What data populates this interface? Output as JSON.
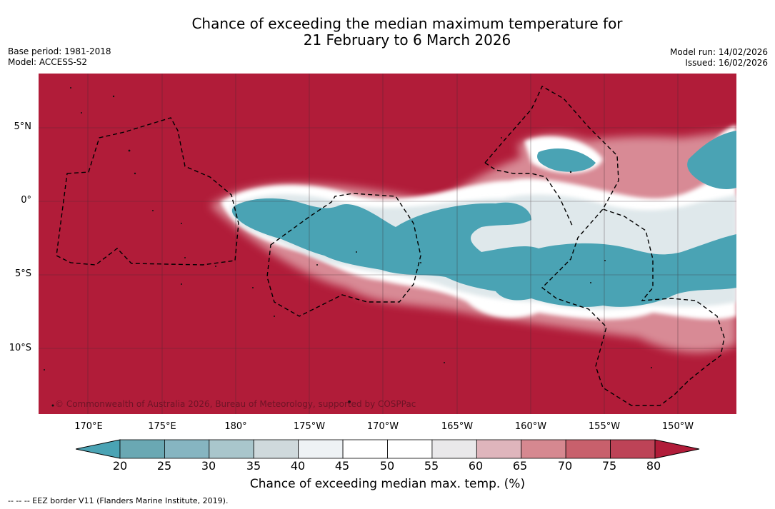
{
  "title": {
    "line1": "Chance of exceeding the median maximum temperature for",
    "line2": "21 February to 6 March 2026"
  },
  "meta_left": {
    "base_period": "Base period: 1981-2018",
    "model": "Model: ACCESS-S2"
  },
  "meta_right": {
    "model_run": "Model run: 14/02/2026",
    "issued": "Issued: 16/02/2026"
  },
  "map": {
    "lat_labels": [
      "5°N",
      "0°",
      "5°S",
      "10°S"
    ],
    "lon_labels": [
      "170°E",
      "175°E",
      "180°",
      "175°W",
      "170°W",
      "165°W",
      "160°W",
      "155°W",
      "150°W"
    ],
    "copyright": "© Commonwealth of Australia 2026, Bureau of Meteorology, supported by COSPPac",
    "colors": {
      "above_median": "#b11c39",
      "below_median": "#4aa3b4",
      "neutral": "#ffffff",
      "eez_border": "#000000"
    }
  },
  "colorbar": {
    "ticks": [
      "20",
      "25",
      "30",
      "35",
      "40",
      "45",
      "50",
      "55",
      "60",
      "65",
      "70",
      "75",
      "80"
    ],
    "colors": [
      "#6aa8b3",
      "#86b5c1",
      "#a9c6cc",
      "#cfd9dc",
      "#eef2f5",
      "#ffffff",
      "#ffffff",
      "#e9e8ea",
      "#dfb5bc",
      "#d68890",
      "#c8606c",
      "#bd4357"
    ],
    "low_extend_color": "#4aa3b4",
    "high_extend_color": "#b11c39",
    "title": "Chance of exceeding median max. temp. (%)"
  },
  "footer": "--  --  -- EEZ border V11 (Flanders Marine Institute, 2019)."
}
